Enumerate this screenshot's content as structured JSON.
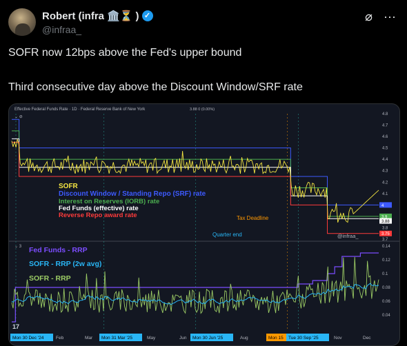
{
  "author": {
    "name": "Robert (infra",
    "name_emoji": "🏛️⏳ )",
    "handle": "@infraa_"
  },
  "icons": [
    "grok-icon",
    "more-icon"
  ],
  "tweet": {
    "line1": "SOFR now 12bps above the Fed's upper bound",
    "line2": "Third consecutive day above the Discount Window/SRF rate"
  },
  "chart_data": [
    {
      "type": "line",
      "header": "Effective Federal Funds Rate · 1D · Federal Reserve Bank of New York",
      "header_value": "3.88  0 (0.00%)",
      "yticks": [
        "4.8",
        "4.7",
        "4.6",
        "4.5",
        "4.4",
        "4.3",
        "4.2",
        "4.1",
        "4",
        "3.9",
        "3.8",
        "3.7"
      ],
      "ylim": [
        3.7,
        4.8
      ],
      "legend": [
        {
          "name": "SOFR",
          "color": "#f5e642"
        },
        {
          "name": "Discount Window / Standing Repo (SRF) rate",
          "color": "#3d5afe"
        },
        {
          "name": "Interest on Reserves (IORB) rate",
          "color": "#4caf50"
        },
        {
          "name": "Fed Funds (effective) rate",
          "color": "#ffffff"
        },
        {
          "name": "Reverse Repo award rate",
          "color": "#ff3b3b"
        }
      ],
      "annotations": [
        "Tax Deadline",
        "Quarter end"
      ],
      "watermark": "@infraa_",
      "price_tags": [
        {
          "label": "4",
          "color": "#3d5afe"
        },
        {
          "label": "3.9",
          "color": "#4caf50"
        },
        {
          "label": "3.88",
          "color": "#ffffff"
        },
        {
          "label": "3.75",
          "color": "#ff3b3b"
        }
      ],
      "series": [
        {
          "name": "Discount Window / Standing Repo (SRF) rate",
          "steps": [
            [
              0,
              4.75
            ],
            [
              0.02,
              4.5
            ],
            [
              0.75,
              4.5
            ],
            [
              0.76,
              4.25
            ],
            [
              0.85,
              4.25
            ],
            [
              0.86,
              4.0
            ],
            [
              1,
              4.0
            ]
          ]
        },
        {
          "name": "Interest on Reserves (IORB) rate",
          "steps": [
            [
              0,
              4.65
            ],
            [
              0.02,
              4.4
            ],
            [
              0.75,
              4.4
            ],
            [
              0.76,
              4.15
            ],
            [
              0.85,
              4.15
            ],
            [
              0.86,
              3.9
            ],
            [
              1,
              3.9
            ]
          ]
        },
        {
          "name": "Fed Funds (effective) rate",
          "steps": [
            [
              0,
              4.58
            ],
            [
              0.02,
              4.33
            ],
            [
              0.75,
              4.33
            ],
            [
              0.76,
              4.08
            ],
            [
              0.85,
              4.08
            ],
            [
              0.86,
              3.88
            ],
            [
              1,
              3.88
            ]
          ]
        },
        {
          "name": "Reverse Repo award rate",
          "steps": [
            [
              0,
              4.55
            ],
            [
              0.02,
              4.25
            ],
            [
              0.75,
              4.25
            ],
            [
              0.76,
              4.0
            ],
            [
              0.85,
              4.0
            ],
            [
              0.86,
              3.75
            ],
            [
              1,
              3.75
            ]
          ]
        }
      ]
    },
    {
      "type": "line",
      "panel_number": "3",
      "yticks": [
        "0.14",
        "0.12",
        "0.1",
        "0.08",
        "0.06",
        "0.04"
      ],
      "ylim": [
        0.02,
        0.14
      ],
      "legend": [
        {
          "name": "Fed Funds - RRP",
          "color": "#7c4dff"
        },
        {
          "name": "SOFR - RRP (2w avg)",
          "color": "#29b6f6"
        },
        {
          "name": "SOFR - RRP",
          "color": "#9ccc65"
        }
      ],
      "xticks": [
        {
          "label": "Mon 30 Dec '24",
          "highlight": "#29b6f6"
        },
        {
          "label": "Feb"
        },
        {
          "label": "Mar"
        },
        {
          "label": "Mon 31 Mar '25",
          "highlight": "#29b6f6"
        },
        {
          "label": "May"
        },
        {
          "label": "Jun"
        },
        {
          "label": "Mon 30 Jun '25",
          "highlight": "#29b6f6"
        },
        {
          "label": "Aug"
        },
        {
          "label": "Mon 15",
          "highlight": "#ff9800"
        },
        {
          "label": "Tue 30 Sep '25",
          "highlight": "#29b6f6"
        },
        {
          "label": "Nov"
        },
        {
          "label": "Dec"
        }
      ]
    }
  ]
}
